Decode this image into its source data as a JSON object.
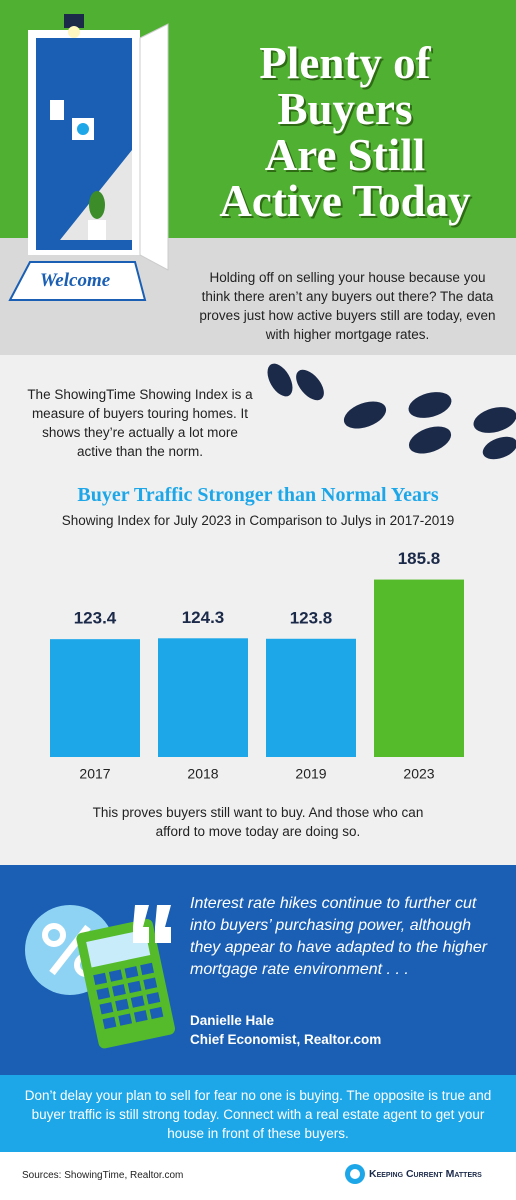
{
  "header": {
    "title_lines": [
      "Plenty of",
      "Buyers",
      "Are Still",
      "Active Today"
    ],
    "mat": "Welcome"
  },
  "intro": "Holding off on selling your house because you think there aren’t any buyers out there? The data proves just how active buyers still are today, even with higher mortgage rates.",
  "index_note": "The ShowingTime Showing Index is a measure of buyers touring homes. It shows they’re actually a lot more active than the norm.",
  "chart_data": {
    "type": "bar",
    "title": "Buyer Traffic Stronger than Normal Years",
    "subtitle": "Showing Index for July 2023 in Comparison to Julys in 2017-2019",
    "categories": [
      "2017",
      "2018",
      "2019",
      "2023"
    ],
    "values": [
      123.4,
      124.3,
      123.8,
      185.8
    ],
    "colors": [
      "#1ea7e8",
      "#1ea7e8",
      "#1ea7e8",
      "#55bb2a"
    ],
    "ylim": [
      0,
      200
    ]
  },
  "chart_caption": "This proves buyers still want to buy. And those who can afford to move today are doing so.",
  "quote": {
    "text": "Interest rate hikes continue to further cut into buyers’ purchasing power, although they appear to have adapted to the higher mortgage rate environment . . .",
    "name": "Danielle Hale",
    "role": "Chief Economist, Realtor.com"
  },
  "cta": "Don’t delay your plan to sell for fear no one is buying. The opposite is true and buyer traffic is still strong today. Connect with a real estate agent to get your house in front of these buyers.",
  "footer": {
    "sources": "Sources: ShowingTime, Realtor.com",
    "logo": "Keeping Current Matters"
  }
}
